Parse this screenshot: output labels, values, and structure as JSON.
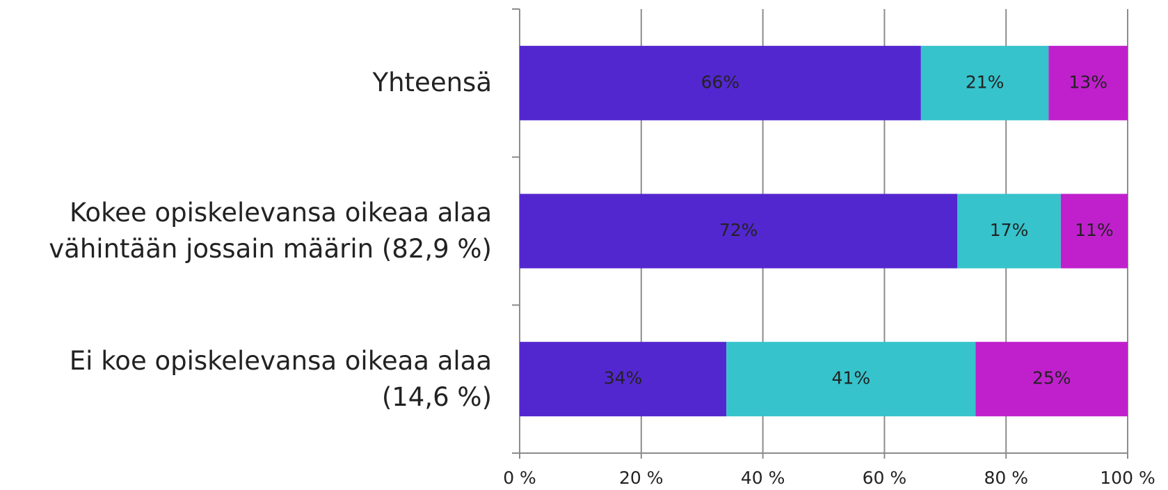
{
  "chart_data": {
    "type": "stacked_barh",
    "categories": [
      "Yhteensä",
      "Kokee opiskelevansa oikeaa alaa\nvähintään jossain määrin (82,9 %)",
      "Ei koe opiskelevansa oikeaa alaa\n(14,6 %)"
    ],
    "series": [
      {
        "color": "#5327cf",
        "values": [
          66,
          72,
          34
        ],
        "value_labels": [
          "66%",
          "72%",
          "34%"
        ]
      },
      {
        "color": "#36c3cc",
        "values": [
          21,
          17,
          41
        ],
        "value_labels": [
          "21%",
          "17%",
          "41%"
        ]
      },
      {
        "color": "#c020cc",
        "values": [
          13,
          11,
          25
        ],
        "value_labels": [
          "13%",
          "11%",
          "25%"
        ]
      }
    ],
    "xlim": [
      0,
      100
    ],
    "xticks": [
      {
        "value": 0,
        "label": "0 %"
      },
      {
        "value": 20,
        "label": "20 %"
      },
      {
        "value": 40,
        "label": "40 %"
      },
      {
        "value": 60,
        "label": "60 %"
      },
      {
        "value": 80,
        "label": "80 %"
      },
      {
        "value": 100,
        "label": "100 %"
      }
    ],
    "grid": true
  }
}
